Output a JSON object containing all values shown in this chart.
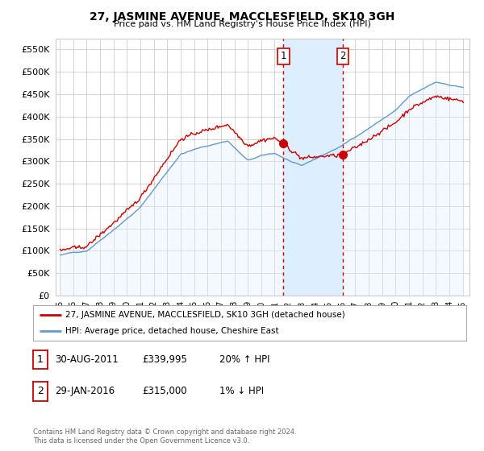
{
  "title": "27, JASMINE AVENUE, MACCLESFIELD, SK10 3GH",
  "subtitle": "Price paid vs. HM Land Registry's House Price Index (HPI)",
  "ylim": [
    0,
    575000
  ],
  "yticks": [
    0,
    50000,
    100000,
    150000,
    200000,
    250000,
    300000,
    350000,
    400000,
    450000,
    500000,
    550000
  ],
  "sale1_date": "30-AUG-2011",
  "sale1_price": 339995,
  "sale1_label": "20% ↑ HPI",
  "sale1_num": "1",
  "sale1_year": 2011.66,
  "sale2_date": "29-JAN-2016",
  "sale2_price": 315000,
  "sale2_label": "1% ↓ HPI",
  "sale2_num": "2",
  "sale2_year": 2016.08,
  "legend_house": "27, JASMINE AVENUE, MACCLESFIELD, SK10 3GH (detached house)",
  "legend_hpi": "HPI: Average price, detached house, Cheshire East",
  "footer": "Contains HM Land Registry data © Crown copyright and database right 2024.\nThis data is licensed under the Open Government Licence v3.0.",
  "house_color": "#cc0000",
  "hpi_color": "#6699cc",
  "hpi_fill_color": "#ddeeff",
  "vline_color": "#cc0000",
  "highlight_fill": "#ddeeff",
  "grid_color": "#cccccc",
  "background_color": "#ffffff",
  "xmin": 1994.7,
  "xmax": 2025.5
}
